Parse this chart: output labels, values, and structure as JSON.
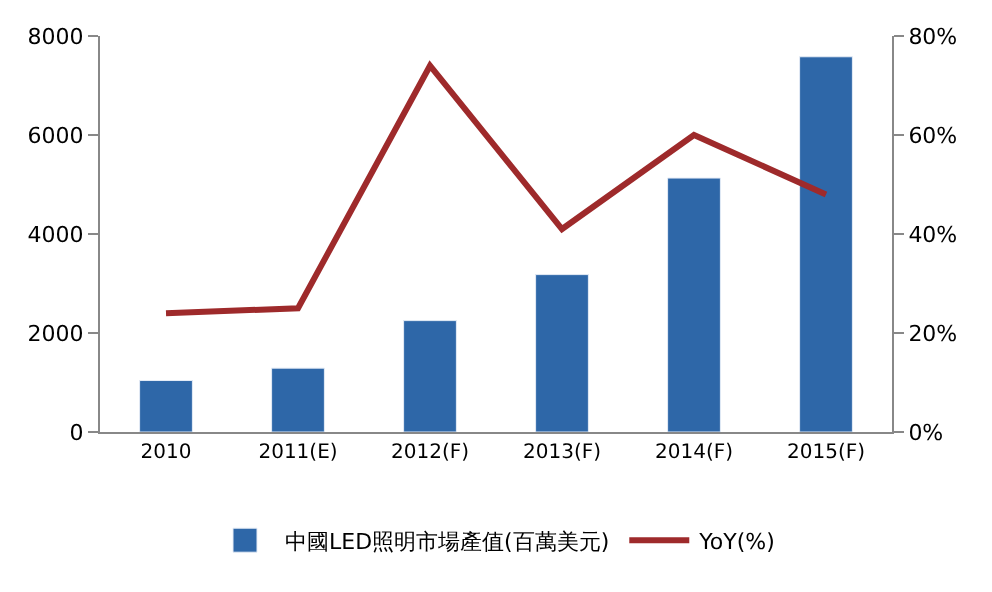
{
  "chart_data": {
    "type": "bar",
    "categories": [
      "2010",
      "2011(E)",
      "2012(F)",
      "2013(F)",
      "2014(F)",
      "2015(F)"
    ],
    "series": [
      {
        "name": "中國LED照明市場產值(百萬美元)",
        "color": "#2e67a8",
        "values": [
          1040,
          1290,
          2250,
          3180,
          5130,
          7580
        ]
      },
      {
        "name": "YoY(%)",
        "type": "line",
        "axis": "y2",
        "color": "#9e2a2b",
        "values": [
          24,
          25,
          74,
          41,
          60,
          48
        ]
      }
    ],
    "ylim": [
      0,
      8000
    ],
    "yticks": [
      0,
      2000,
      4000,
      6000,
      8000
    ],
    "y2lim": [
      0,
      80
    ],
    "y2ticks": [
      {
        "value": 0,
        "label": "0%"
      },
      {
        "value": 20,
        "label": "20%"
      },
      {
        "value": 40,
        "label": "40%"
      },
      {
        "value": 60,
        "label": "60%"
      },
      {
        "value": 80,
        "label": "80%"
      }
    ],
    "legend": "bottom",
    "marker": "none"
  }
}
